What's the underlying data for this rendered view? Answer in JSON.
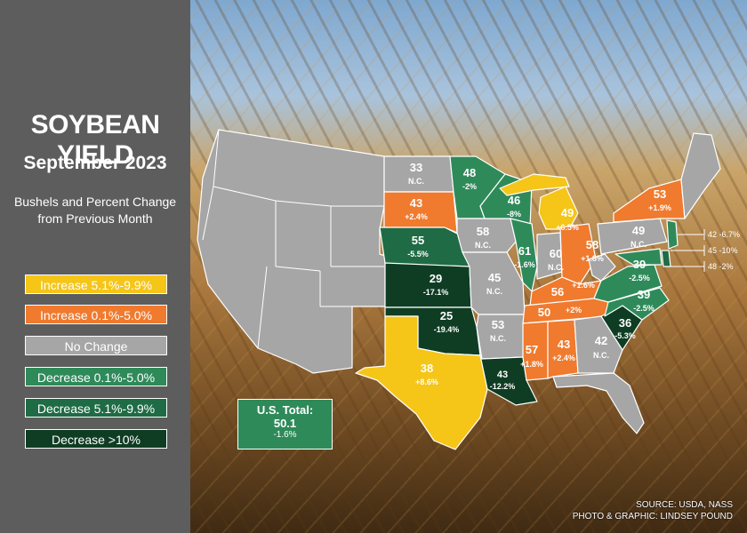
{
  "title": "SOYBEAN YIELD",
  "subtitle": "September 2023",
  "description_line1": "Bushels and Percent Change",
  "description_line2": "from Previous Month",
  "legend": [
    {
      "label": "Increase 5.1%-9.9%",
      "color": "#f5c518",
      "text_color": "#ffffff"
    },
    {
      "label": "Increase 0.1%-5.0%",
      "color": "#f07a2e",
      "text_color": "#ffffff"
    },
    {
      "label": "No Change",
      "color": "#a6a6a6",
      "text_color": "#ffffff"
    },
    {
      "label": "Decrease 0.1%-5.0%",
      "color": "#2f8a5a",
      "text_color": "#ffffff"
    },
    {
      "label": "Decrease 5.1%-9.9%",
      "color": "#1f6b45",
      "text_color": "#ffffff"
    },
    {
      "label": "Decrease >10%",
      "color": "#0f3d24",
      "text_color": "#ffffff"
    }
  ],
  "us_total": {
    "label": "U.S. Total:",
    "value": "50.1",
    "change": "-1.6%"
  },
  "states": [
    {
      "value": "33",
      "change": "N.C."
    },
    {
      "value": "48",
      "change": "-2%"
    },
    {
      "value": "43",
      "change": "+2.4%"
    },
    {
      "value": "46",
      "change": "-8%"
    },
    {
      "value": "49",
      "change": "+6.5%"
    },
    {
      "value": "53",
      "change": "+1.9%"
    },
    {
      "value": "55",
      "change": "-5.5%"
    },
    {
      "value": "58",
      "change": "N.C."
    },
    {
      "value": "61",
      "change": "-1.6%"
    },
    {
      "value": "60",
      "change": "N.C."
    },
    {
      "value": "58",
      "change": "+1.8%"
    },
    {
      "value": "49",
      "change": "N.C."
    },
    {
      "value": "45",
      "change": "N.C."
    },
    {
      "value": "29",
      "change": "-17.1%"
    },
    {
      "value": "39",
      "change": "-2.5%"
    },
    {
      "value": "56",
      "change": "+1.6%"
    },
    {
      "value": "39",
      "change": "-2.5%"
    },
    {
      "value": "25",
      "change": "-19.4%"
    },
    {
      "value": "53",
      "change": "N.C."
    },
    {
      "value": "50",
      "change": "+2%"
    },
    {
      "value": "36",
      "change": "-5.3%"
    },
    {
      "value": "57",
      "change": "+1.8%"
    },
    {
      "value": "43",
      "change": "+2.4%"
    },
    {
      "value": "42",
      "change": "N.C."
    },
    {
      "value": "38",
      "change": "+8.6%"
    },
    {
      "value": "43",
      "change": "-12.2%"
    }
  ],
  "callouts": [
    {
      "text": "42 -6.7%"
    },
    {
      "text": "45 -10%"
    },
    {
      "text": "48 -2%"
    }
  ],
  "source": "SOURCE: USDA, NASS",
  "credit": "PHOTO & GRAPHIC: LINDSEY POUND"
}
